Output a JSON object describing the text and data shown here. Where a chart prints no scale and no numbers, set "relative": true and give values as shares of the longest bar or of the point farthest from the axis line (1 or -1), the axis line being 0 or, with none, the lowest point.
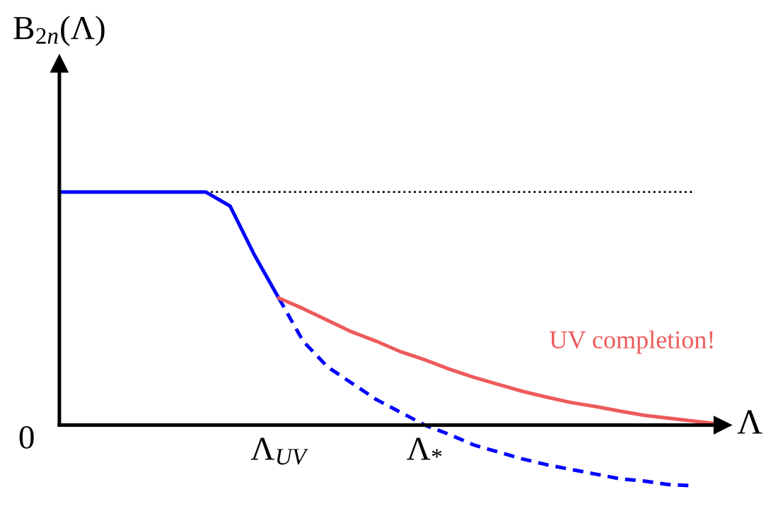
{
  "chart_data": {
    "type": "line",
    "relative": true,
    "xlabel": "Λ",
    "ylabel": "B$_{2n}$(Λ)",
    "categories": [
      null,
      null,
      null,
      null,
      null,
      null,
      null,
      null,
      null,
      "Λ$_{UV}$",
      null,
      null,
      null,
      null,
      null,
      "Λ$_{*}$",
      null,
      null,
      null,
      null,
      null,
      null,
      null,
      null,
      null,
      null,
      null,
      null
    ],
    "series": [
      {
        "color": "#000000",
        "line_style": "dotted",
        "values": [
          null,
          null,
          null,
          null,
          null,
          null,
          1,
          1,
          1,
          1,
          1,
          1,
          1,
          1,
          1,
          1,
          1,
          1,
          1,
          1,
          1,
          1,
          1,
          1,
          1,
          1,
          1,
          null
        ]
      },
      {
        "color": "#0000ff",
        "line_style": "solid",
        "values": [
          1,
          1,
          1,
          1,
          1,
          1,
          1,
          0.94,
          0.73,
          0.545,
          null,
          null,
          null,
          null,
          null,
          null,
          null,
          null,
          null,
          null,
          null,
          null,
          null,
          null,
          null,
          null,
          null,
          null
        ]
      },
      {
        "color": "#0000ff",
        "line_style": "dashed",
        "values": [
          null,
          null,
          null,
          null,
          null,
          null,
          null,
          null,
          null,
          0.545,
          0.36,
          0.25,
          0.18,
          0.11,
          0.055,
          0,
          -0.04,
          -0.085,
          -0.115,
          -0.145,
          -0.17,
          -0.19,
          -0.21,
          -0.23,
          -0.24,
          -0.255,
          -0.26,
          null
        ]
      },
      {
        "color": "#ee5a5a",
        "line_style": "solid",
        "values": [
          null,
          null,
          null,
          null,
          null,
          null,
          null,
          null,
          null,
          0.545,
          0.5,
          0.45,
          0.4,
          0.36,
          0.315,
          0.28,
          0.24,
          0.205,
          0.175,
          0.145,
          0.12,
          0.097,
          0.08,
          0.06,
          0.042,
          0.03,
          0.018,
          0.006
        ]
      }
    ],
    "annotations": [
      "UV completion!",
      "0"
    ],
    "legend": false
  }
}
